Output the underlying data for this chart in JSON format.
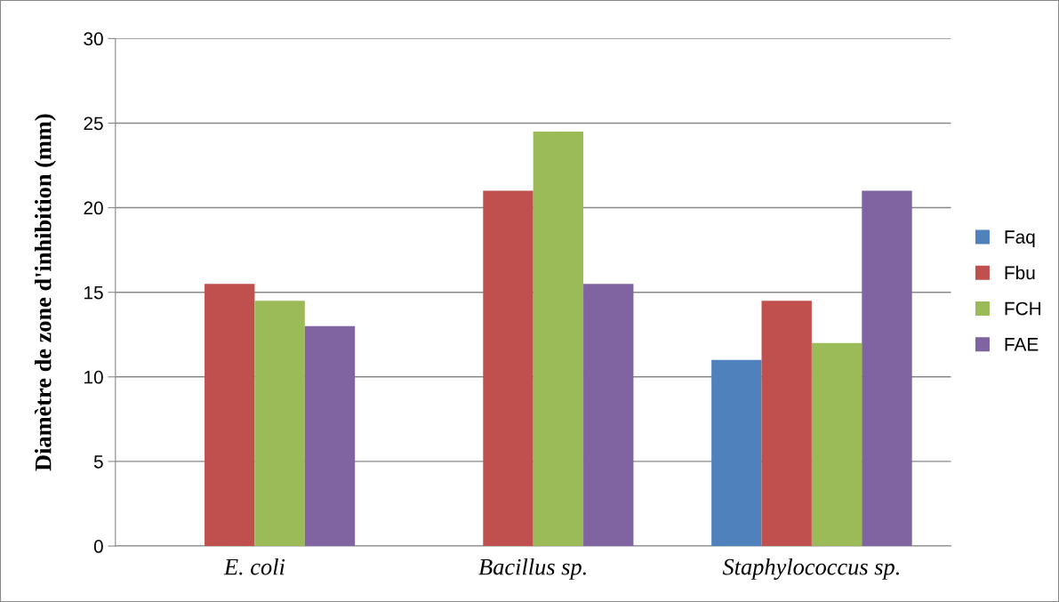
{
  "chart_data": {
    "type": "bar",
    "ylabel": "Diamètre de zone d'inhibition (mm)",
    "categories": [
      "E. coli",
      "Bacillus sp.",
      "Staphylococcus sp."
    ],
    "series": [
      {
        "name": "Faq",
        "color": "#4f81bd",
        "values": [
          0,
          0,
          11
        ]
      },
      {
        "name": "Fbu",
        "color": "#c0504d",
        "values": [
          15.5,
          21,
          14.5
        ]
      },
      {
        "name": "FCH",
        "color": "#9bbb59",
        "values": [
          14.5,
          24.5,
          12
        ]
      },
      {
        "name": "FAE",
        "color": "#8064a2",
        "values": [
          13,
          15.5,
          21
        ]
      }
    ],
    "ylim": [
      0,
      30
    ],
    "yticks": [
      0,
      5,
      10,
      15,
      20,
      25,
      30
    ],
    "grid": "y",
    "legend": "right"
  }
}
